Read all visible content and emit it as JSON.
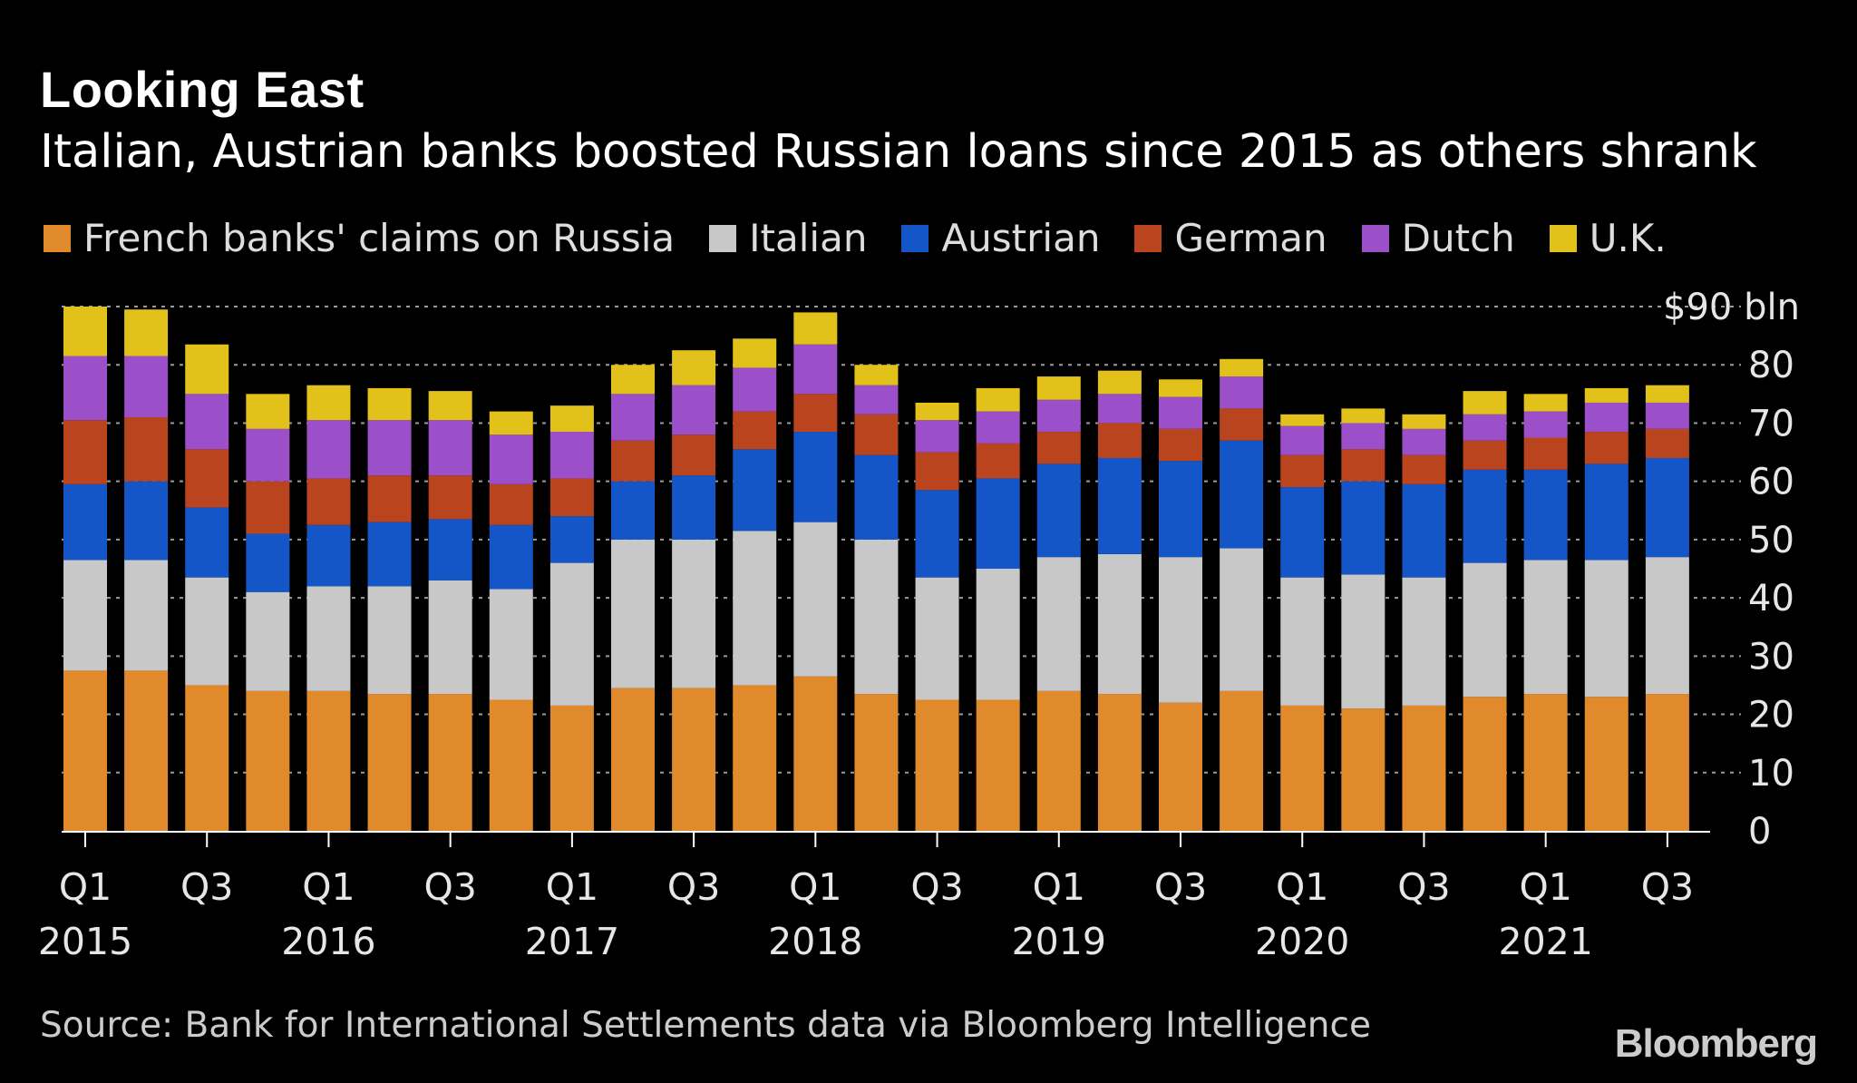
{
  "header": {
    "title": "Looking East",
    "subtitle": "Italian, Austrian banks boosted Russian loans since 2015 as others shrank"
  },
  "footer": {
    "source": "Source: Bank for International Settlements data via Bloomberg Intelligence",
    "logo": "Bloomberg"
  },
  "chart_data": {
    "type": "bar",
    "stacked": true,
    "title": "Looking East",
    "subtitle": "Italian, Austrian banks boosted Russian loans since 2015 as others shrank",
    "unit_label": "$90 bln",
    "ylim": [
      0,
      90
    ],
    "yticks": [
      "0",
      "10",
      "20",
      "30",
      "40",
      "50",
      "60",
      "70",
      "80"
    ],
    "grid": true,
    "legend_position": "top",
    "categories": [
      "2015 Q1",
      "2015 Q2",
      "2015 Q3",
      "2015 Q4",
      "2016 Q1",
      "2016 Q2",
      "2016 Q3",
      "2016 Q4",
      "2017 Q1",
      "2017 Q2",
      "2017 Q3",
      "2017 Q4",
      "2018 Q1",
      "2018 Q2",
      "2018 Q3",
      "2018 Q4",
      "2019 Q1",
      "2019 Q2",
      "2019 Q3",
      "2019 Q4",
      "2020 Q1",
      "2020 Q2",
      "2020 Q3",
      "2020 Q4",
      "2021 Q1",
      "2021 Q2",
      "2021 Q3"
    ],
    "x_tick_labels": [
      {
        "index": 0,
        "quarter": "Q1",
        "year": "2015"
      },
      {
        "index": 2,
        "quarter": "Q3",
        "year": ""
      },
      {
        "index": 4,
        "quarter": "Q1",
        "year": "2016"
      },
      {
        "index": 6,
        "quarter": "Q3",
        "year": ""
      },
      {
        "index": 8,
        "quarter": "Q1",
        "year": "2017"
      },
      {
        "index": 10,
        "quarter": "Q3",
        "year": ""
      },
      {
        "index": 12,
        "quarter": "Q1",
        "year": "2018"
      },
      {
        "index": 14,
        "quarter": "Q3",
        "year": ""
      },
      {
        "index": 16,
        "quarter": "Q1",
        "year": "2019"
      },
      {
        "index": 18,
        "quarter": "Q3",
        "year": ""
      },
      {
        "index": 20,
        "quarter": "Q1",
        "year": "2020"
      },
      {
        "index": 22,
        "quarter": "Q3",
        "year": ""
      },
      {
        "index": 24,
        "quarter": "Q1",
        "year": "2021"
      },
      {
        "index": 26,
        "quarter": "Q3",
        "year": ""
      }
    ],
    "series": [
      {
        "name": "French banks' claims on Russia",
        "color": "#e08a2c",
        "values": [
          27.5,
          27.5,
          25,
          24,
          24,
          23.5,
          23.5,
          22.5,
          21.5,
          24.5,
          24.5,
          25,
          26.5,
          23.5,
          22.5,
          22.5,
          24,
          23.5,
          22,
          24,
          21.5,
          21,
          21.5,
          23,
          23.5,
          23,
          23.5
        ]
      },
      {
        "name": "Italian",
        "color": "#c8c8c8",
        "values": [
          19,
          19,
          18.5,
          17,
          18,
          18.5,
          19.5,
          19,
          24.5,
          25.5,
          25.5,
          26.5,
          26.5,
          26.5,
          21,
          22.5,
          23,
          24,
          25,
          24.5,
          22,
          23,
          22,
          23,
          23,
          23.5,
          23.5
        ]
      },
      {
        "name": "Austrian",
        "color": "#1456c8",
        "values": [
          13,
          13.5,
          12,
          10,
          10.5,
          11,
          10.5,
          11,
          8,
          10,
          11,
          14,
          15.5,
          14.5,
          15,
          15.5,
          16,
          16.5,
          16.5,
          18.5,
          15.5,
          16,
          16,
          16,
          15.5,
          16.5,
          17
        ]
      },
      {
        "name": "German",
        "color": "#b9441e",
        "values": [
          11,
          11,
          10,
          9,
          8,
          8,
          7.5,
          7,
          6.5,
          7,
          7,
          6.5,
          6.5,
          7,
          6.5,
          6,
          5.5,
          6,
          5.5,
          5.5,
          5.5,
          5.5,
          5,
          5,
          5.5,
          5.5,
          5
        ]
      },
      {
        "name": "Dutch",
        "color": "#9b4fc8",
        "values": [
          11,
          10.5,
          9.5,
          9,
          10,
          9.5,
          9.5,
          8.5,
          8,
          8,
          8.5,
          7.5,
          8.5,
          5,
          5.5,
          5.5,
          5.5,
          5,
          5.5,
          5.5,
          5,
          4.5,
          4.5,
          4.5,
          4.5,
          5,
          4.5
        ]
      },
      {
        "name": "U.K.",
        "color": "#e3c11b",
        "values": [
          8.5,
          8,
          8.5,
          6,
          6,
          5.5,
          5,
          4,
          4.5,
          5,
          6,
          5,
          5.5,
          3.5,
          3,
          4,
          4,
          4,
          3,
          3,
          2,
          2.5,
          2.5,
          4,
          3,
          2.5,
          3
        ]
      }
    ]
  }
}
